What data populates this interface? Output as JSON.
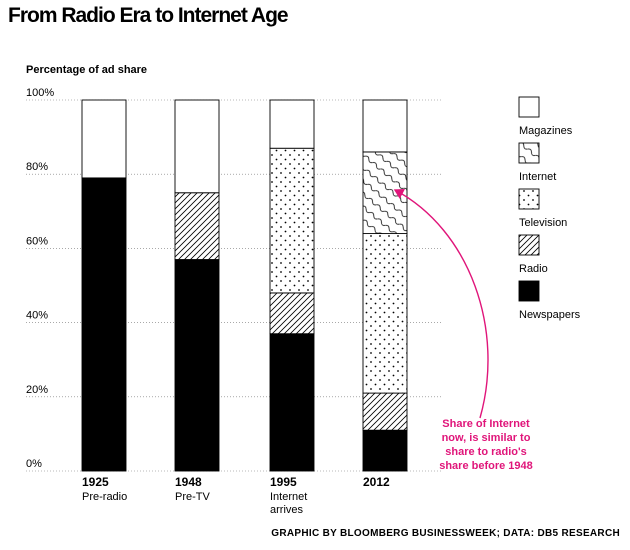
{
  "title": "From Radio Era to Internet Age",
  "credit": "GRAPHIC BY BLOOMBERG BUSINESSWEEK; DATA: DB5 RESEARCH",
  "chart_data": {
    "type": "bar",
    "stacked": true,
    "ylabel": "Percentage of ad share",
    "ylim": [
      0,
      100
    ],
    "yticks": [
      "0%",
      "20%",
      "40%",
      "60%",
      "80%",
      "100%"
    ],
    "categories": [
      {
        "year": "1925",
        "sub": [
          "Pre-radio"
        ]
      },
      {
        "year": "1948",
        "sub": [
          "Pre-TV"
        ]
      },
      {
        "year": "1995",
        "sub": [
          "Internet",
          "arrives"
        ]
      },
      {
        "year": "2012",
        "sub": []
      }
    ],
    "series": [
      {
        "name": "Newspapers",
        "pattern": "solid",
        "values": [
          79,
          57,
          37,
          11
        ]
      },
      {
        "name": "Radio",
        "pattern": "hatch",
        "values": [
          0,
          18,
          11,
          10
        ]
      },
      {
        "name": "Television",
        "pattern": "dots",
        "values": [
          0,
          0,
          39,
          43
        ]
      },
      {
        "name": "Internet",
        "pattern": "waves",
        "values": [
          0,
          0,
          0,
          22
        ]
      },
      {
        "name": "Magazines",
        "pattern": "blank",
        "values": [
          21,
          25,
          13,
          14
        ]
      }
    ],
    "legend_order": [
      "Magazines",
      "Internet",
      "Television",
      "Radio",
      "Newspapers"
    ],
    "annotation": {
      "text": [
        "Share of Internet",
        "now, is similar to",
        "share to radio's",
        "share before 1948"
      ],
      "color": "#e0157a"
    }
  }
}
